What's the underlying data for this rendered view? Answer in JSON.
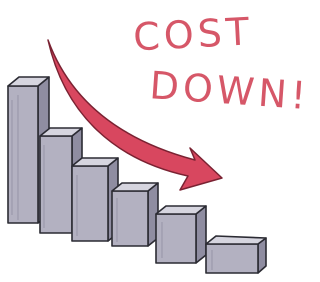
{
  "headline": {
    "line1": "COST",
    "line2": "DOWN!"
  }
}
